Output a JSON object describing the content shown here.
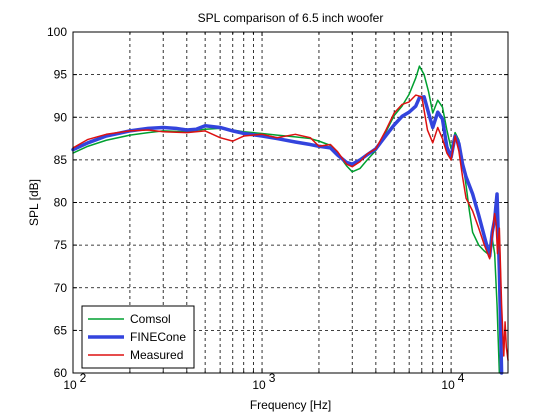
{
  "chart_data": {
    "type": "line",
    "title": "SPL comparison of 6.5 inch woofer",
    "xlabel": "Frequency [Hz]",
    "ylabel": "SPL [dB]",
    "xscale": "log",
    "xlim": [
      100,
      20000
    ],
    "ylim": [
      60,
      100
    ],
    "x_ticks": [
      {
        "value": 100,
        "base": "10",
        "exp": "2"
      },
      {
        "value": 1000,
        "base": "10",
        "exp": "3"
      },
      {
        "value": 10000,
        "base": "10",
        "exp": "4"
      }
    ],
    "y_ticks": [
      60,
      65,
      70,
      75,
      80,
      85,
      90,
      95,
      100
    ],
    "grid": true,
    "legend_position": "bottom-left",
    "series": [
      {
        "name": "Comsol",
        "color": "#00a030",
        "width": 1.5,
        "points": [
          [
            100,
            85.8
          ],
          [
            120,
            86.6
          ],
          [
            150,
            87.3
          ],
          [
            200,
            87.9
          ],
          [
            250,
            88.2
          ],
          [
            300,
            88.4
          ],
          [
            400,
            88.3
          ],
          [
            500,
            88.6
          ],
          [
            600,
            88.7
          ],
          [
            700,
            88.5
          ],
          [
            800,
            88.3
          ],
          [
            1000,
            88.1
          ],
          [
            1200,
            87.9
          ],
          [
            1500,
            87.7
          ],
          [
            1800,
            87.5
          ],
          [
            2000,
            87.2
          ],
          [
            2300,
            86.7
          ],
          [
            2500,
            85.8
          ],
          [
            2800,
            84.3
          ],
          [
            3000,
            83.6
          ],
          [
            3300,
            84.0
          ],
          [
            3600,
            85.0
          ],
          [
            4000,
            86.1
          ],
          [
            4500,
            88.2
          ],
          [
            5000,
            90.2
          ],
          [
            5500,
            91.3
          ],
          [
            6000,
            92.7
          ],
          [
            6500,
            94.6
          ],
          [
            6800,
            96.0
          ],
          [
            7200,
            95.0
          ],
          [
            7600,
            93.0
          ],
          [
            8000,
            90.5
          ],
          [
            8500,
            92.0
          ],
          [
            9000,
            91.2
          ],
          [
            9500,
            88.5
          ],
          [
            10000,
            86.3
          ],
          [
            10500,
            88.2
          ],
          [
            11000,
            87.3
          ],
          [
            11500,
            85.0
          ],
          [
            12000,
            82.0
          ],
          [
            12500,
            79.0
          ],
          [
            13000,
            76.5
          ],
          [
            14000,
            75.0
          ],
          [
            15000,
            74.3
          ],
          [
            16000,
            73.8
          ],
          [
            16500,
            75.8
          ],
          [
            17000,
            74.0
          ],
          [
            17500,
            68.0
          ],
          [
            18000,
            60.0
          ]
        ]
      },
      {
        "name": "FINECone",
        "color": "#3344dd",
        "width": 3.5,
        "points": [
          [
            100,
            86.2
          ],
          [
            120,
            87.0
          ],
          [
            150,
            87.8
          ],
          [
            200,
            88.4
          ],
          [
            250,
            88.7
          ],
          [
            300,
            88.8
          ],
          [
            350,
            88.7
          ],
          [
            400,
            88.5
          ],
          [
            450,
            88.6
          ],
          [
            500,
            89.0
          ],
          [
            600,
            88.8
          ],
          [
            700,
            88.4
          ],
          [
            800,
            88.1
          ],
          [
            1000,
            87.8
          ],
          [
            1200,
            87.5
          ],
          [
            1500,
            87.1
          ],
          [
            1800,
            86.8
          ],
          [
            2000,
            86.6
          ],
          [
            2300,
            86.4
          ],
          [
            2500,
            85.6
          ],
          [
            2800,
            84.7
          ],
          [
            3000,
            84.5
          ],
          [
            3300,
            85.0
          ],
          [
            3600,
            85.6
          ],
          [
            4000,
            86.3
          ],
          [
            4500,
            87.8
          ],
          [
            5000,
            89.1
          ],
          [
            5500,
            90.1
          ],
          [
            6000,
            90.6
          ],
          [
            6500,
            91.3
          ],
          [
            6800,
            92.3
          ],
          [
            7200,
            92.4
          ],
          [
            7600,
            90.5
          ],
          [
            8000,
            88.8
          ],
          [
            8500,
            90.6
          ],
          [
            9000,
            89.8
          ],
          [
            9500,
            86.5
          ],
          [
            10000,
            85.3
          ],
          [
            10500,
            87.8
          ],
          [
            11000,
            86.9
          ],
          [
            11500,
            84.5
          ],
          [
            12000,
            83.0
          ],
          [
            13000,
            81.0
          ],
          [
            14000,
            78.5
          ],
          [
            15000,
            76.0
          ],
          [
            16000,
            73.7
          ],
          [
            16500,
            76.5
          ],
          [
            17000,
            78.0
          ],
          [
            17500,
            81.0
          ],
          [
            18000,
            72.0
          ],
          [
            18500,
            60.0
          ]
        ]
      },
      {
        "name": "Measured",
        "color": "#dd1111",
        "width": 1.5,
        "points": [
          [
            100,
            86.4
          ],
          [
            120,
            87.4
          ],
          [
            150,
            88.0
          ],
          [
            200,
            88.4
          ],
          [
            250,
            88.5
          ],
          [
            300,
            88.3
          ],
          [
            400,
            88.2
          ],
          [
            500,
            88.4
          ],
          [
            600,
            87.6
          ],
          [
            700,
            87.2
          ],
          [
            800,
            87.8
          ],
          [
            1000,
            88.0
          ],
          [
            1200,
            87.6
          ],
          [
            1500,
            88.0
          ],
          [
            1800,
            87.6
          ],
          [
            2000,
            86.6
          ],
          [
            2300,
            86.8
          ],
          [
            2500,
            86.0
          ],
          [
            2800,
            84.5
          ],
          [
            3000,
            84.2
          ],
          [
            3300,
            84.8
          ],
          [
            3600,
            85.7
          ],
          [
            4000,
            86.3
          ],
          [
            4500,
            88.4
          ],
          [
            5000,
            90.5
          ],
          [
            5500,
            91.5
          ],
          [
            6000,
            91.8
          ],
          [
            6500,
            92.6
          ],
          [
            7000,
            92.4
          ],
          [
            7500,
            88.5
          ],
          [
            8000,
            87.0
          ],
          [
            8500,
            88.8
          ],
          [
            9000,
            87.5
          ],
          [
            9500,
            85.8
          ],
          [
            10000,
            85.0
          ],
          [
            10500,
            87.8
          ],
          [
            11000,
            86.0
          ],
          [
            11500,
            83.0
          ],
          [
            12000,
            80.5
          ],
          [
            13000,
            79.0
          ],
          [
            14000,
            77.0
          ],
          [
            15000,
            75.0
          ],
          [
            16000,
            73.4
          ],
          [
            16500,
            76.0
          ],
          [
            17000,
            78.7
          ],
          [
            17300,
            77.5
          ],
          [
            17600,
            74.0
          ],
          [
            18000,
            77.0
          ],
          [
            18500,
            68.0
          ],
          [
            19000,
            62.0
          ],
          [
            19300,
            66.0
          ],
          [
            19600,
            63.0
          ],
          [
            20000,
            61.5
          ]
        ]
      }
    ]
  }
}
